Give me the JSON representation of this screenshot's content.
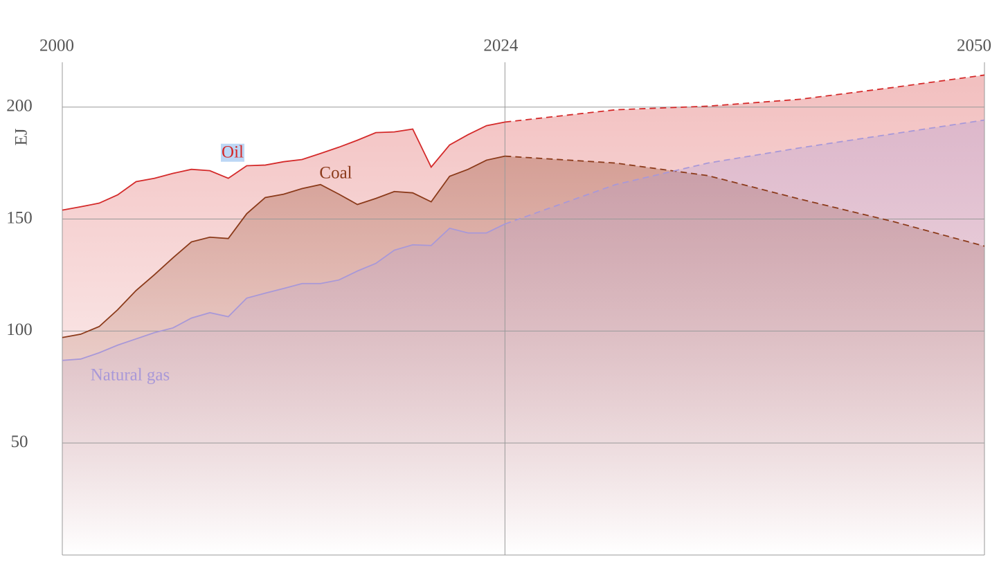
{
  "chart_data": {
    "type": "area",
    "y_label": "EJ",
    "x": [
      2000,
      2001,
      2002,
      2003,
      2004,
      2005,
      2006,
      2007,
      2008,
      2009,
      2010,
      2011,
      2012,
      2013,
      2014,
      2015,
      2016,
      2017,
      2018,
      2019,
      2020,
      2021,
      2022,
      2023,
      2024,
      2030,
      2035,
      2040,
      2045,
      2050
    ],
    "projection_from": 2024,
    "series": [
      {
        "name": "Oil",
        "color": "#d42a2a",
        "values": [
          154.0,
          155.5,
          157.1,
          160.8,
          166.7,
          168.2,
          170.4,
          172.2,
          171.6,
          168.2,
          173.8,
          174.1,
          175.6,
          176.6,
          179.3,
          182.1,
          185.2,
          188.6,
          188.9,
          190.2,
          173.2,
          183.1,
          187.7,
          191.7,
          193.3,
          198.8,
          200.4,
          203.5,
          208.7,
          214.3
        ]
      },
      {
        "name": "Coal",
        "color": "#8b3a1a",
        "values": [
          97.1,
          98.6,
          102.0,
          109.5,
          118.1,
          125.2,
          132.7,
          139.8,
          141.9,
          141.3,
          152.4,
          159.6,
          161.1,
          163.6,
          165.4,
          161.1,
          156.5,
          159.2,
          162.3,
          161.7,
          157.7,
          169.1,
          172.2,
          176.3,
          178.1,
          175.0,
          169.4,
          158.9,
          149.0,
          137.9
        ]
      },
      {
        "name": "Natural gas",
        "color": "#a898d8",
        "values": [
          86.9,
          87.5,
          90.3,
          93.7,
          96.5,
          99.3,
          101.4,
          105.8,
          108.2,
          106.4,
          114.7,
          116.9,
          119.0,
          121.2,
          121.2,
          122.8,
          126.8,
          130.2,
          136.1,
          138.5,
          138.2,
          145.9,
          143.8,
          143.8,
          147.8,
          165.4,
          175.0,
          181.8,
          188.0,
          194.2
        ]
      }
    ],
    "xlim": [
      2000,
      2050
    ],
    "xticks": [
      2000,
      2024,
      2050
    ],
    "ylim": [
      0,
      220
    ],
    "yticks": [
      50,
      100,
      150,
      200
    ],
    "grid": true
  }
}
